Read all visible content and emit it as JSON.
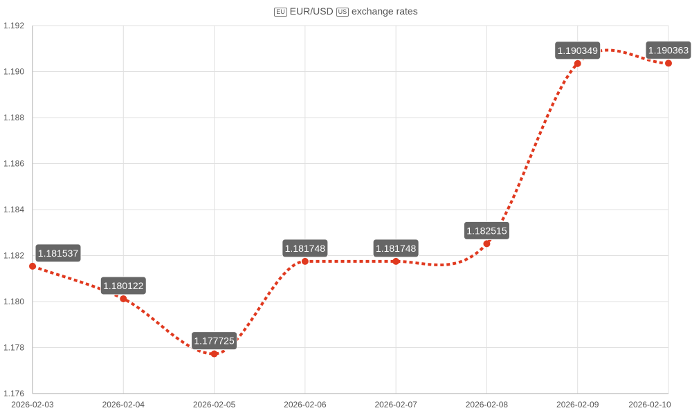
{
  "chart_data": {
    "type": "line",
    "title": "EUR/USD exchange rates",
    "title_parts": {
      "flag1": "EU",
      "pair": "EUR/USD",
      "flag2": "US",
      "rest": "exchange rates"
    },
    "categories": [
      "2026-02-03",
      "2026-02-04",
      "2026-02-05",
      "2026-02-06",
      "2026-02-07",
      "2026-02-08",
      "2026-02-09",
      "2026-02-10"
    ],
    "values": [
      1.181537,
      1.180122,
      1.177725,
      1.181748,
      1.181748,
      1.182515,
      1.190349,
      1.190363
    ],
    "data_labels": [
      "1.181537",
      "1.180122",
      "1.177725",
      "1.181748",
      "1.181748",
      "1.182515",
      "1.190349",
      "1.190363"
    ],
    "ylim": [
      1.176,
      1.192
    ],
    "yticks": [
      "1.192",
      "1.190",
      "1.188",
      "1.186",
      "1.184",
      "1.182",
      "1.180",
      "1.178",
      "1.176"
    ],
    "grid": true,
    "xlabel": "",
    "ylabel": "",
    "colors": {
      "line": "#e0391f",
      "label_bg": "#666666",
      "grid": "#e0e0e0"
    }
  }
}
